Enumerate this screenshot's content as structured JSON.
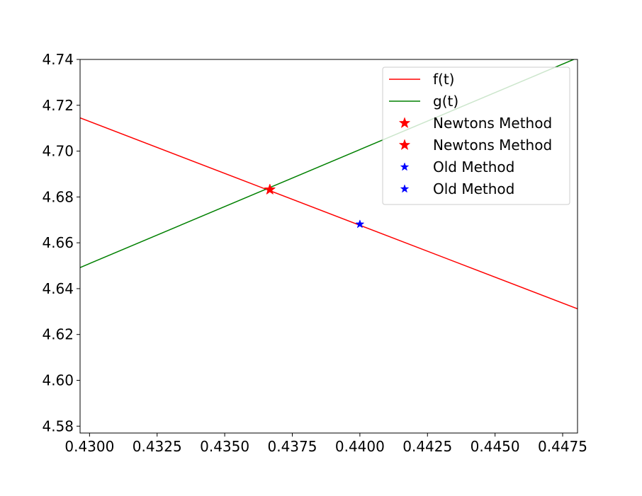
{
  "chart_data": {
    "type": "line",
    "title": "",
    "xlabel": "",
    "ylabel": "",
    "xlim": [
      0.42965,
      0.44805
    ],
    "ylim": [
      4.577,
      4.74
    ],
    "grid": false,
    "legend_placement": "top-right",
    "x_ticks": [
      "0.4300",
      "0.4325",
      "0.4350",
      "0.4375",
      "0.4400",
      "0.4425",
      "0.4450",
      "0.4475"
    ],
    "y_ticks": [
      "4.58",
      "4.60",
      "4.62",
      "4.64",
      "4.66",
      "4.68",
      "4.70",
      "4.72",
      "4.74"
    ],
    "series": [
      {
        "name": "f(t)",
        "kind": "line",
        "color": "#ff0000",
        "x": [
          0.42965,
          0.44805
        ],
        "y": [
          4.7145,
          4.6312
        ]
      },
      {
        "name": "g(t)",
        "kind": "line",
        "color": "#008000",
        "x": [
          0.42965,
          0.44805
        ],
        "y": [
          4.6492,
          4.7407
        ]
      },
      {
        "name": "Newtons Method",
        "kind": "marker",
        "marker": "star",
        "color": "#ff0000",
        "x": [
          0.43667
        ],
        "y": [
          4.6832
        ]
      },
      {
        "name": "Newtons Method",
        "kind": "marker",
        "marker": "star",
        "color": "#ff0000",
        "x": [
          0.43667
        ],
        "y": [
          4.6832
        ]
      },
      {
        "name": "Old Method",
        "kind": "marker",
        "marker": "star",
        "color": "#0000ff",
        "x": [
          0.44
        ],
        "y": [
          4.6681
        ]
      },
      {
        "name": "Old Method",
        "kind": "marker",
        "marker": "star",
        "color": "#0000ff",
        "x": [
          0.44
        ],
        "y": [
          4.6681
        ]
      }
    ]
  }
}
